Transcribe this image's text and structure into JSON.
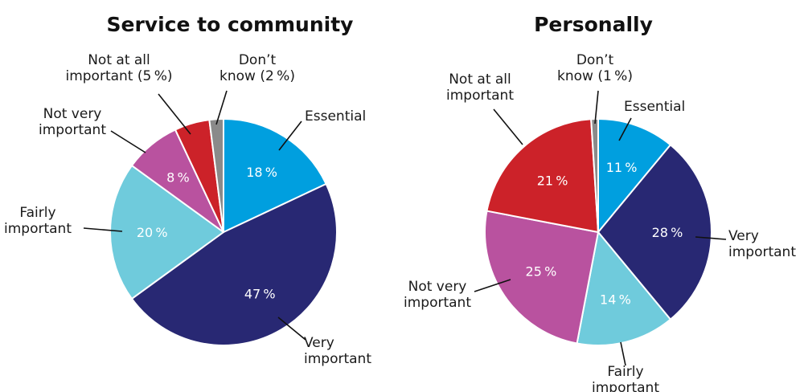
{
  "chart_data": [
    {
      "type": "pie",
      "title": "Service to community",
      "start_angle": 0,
      "direction": "clockwise",
      "categories": [
        "Essential",
        "Very important",
        "Fairly important",
        "Not very important",
        "Not at all important",
        "Don’t know"
      ],
      "values": [
        18,
        47,
        20,
        8,
        5,
        2
      ],
      "colors": [
        "#009fdf",
        "#282873",
        "#6fcbdc",
        "#b9529f",
        "#cc2229",
        "#8a8a8a"
      ],
      "slice_labels": [
        "18 %",
        "47 %",
        "20 %",
        "8 %",
        "",
        ""
      ],
      "slice_label_colors": [
        "#ffffff",
        "#ffffff",
        "#ffffff",
        "#ffffff",
        "#ffffff",
        "#ffffff"
      ],
      "callouts": [
        [
          "Essential"
        ],
        [
          "Very",
          "important"
        ],
        [
          "Fairly",
          "important"
        ],
        [
          "Not very",
          "important"
        ],
        [
          "Not at all",
          "important (5 %)"
        ],
        [
          "Don’t",
          "know (2 %)"
        ]
      ]
    },
    {
      "type": "pie",
      "title": "Personally",
      "start_angle": 0,
      "direction": "clockwise",
      "categories": [
        "Essential",
        "Very important",
        "Fairly important",
        "Not very important",
        "Not at all important",
        "Don’t know"
      ],
      "values": [
        11,
        28,
        14,
        25,
        21,
        1
      ],
      "colors": [
        "#009fdf",
        "#282873",
        "#6fcbdc",
        "#b9529f",
        "#cc2229",
        "#8a8a8a"
      ],
      "slice_labels": [
        "11 %",
        "28 %",
        "14 %",
        "25 %",
        "21 %",
        ""
      ],
      "slice_label_colors": [
        "#ffffff",
        "#ffffff",
        "#ffffff",
        "#ffffff",
        "#ffffff",
        "#ffffff"
      ],
      "callouts": [
        [
          "Essential"
        ],
        [
          "Very",
          "important"
        ],
        [
          "Fairly",
          "important"
        ],
        [
          "Not very",
          "important"
        ],
        [
          "Not at all",
          "important"
        ],
        [
          "Don’t",
          "know (1 %)"
        ]
      ]
    }
  ]
}
